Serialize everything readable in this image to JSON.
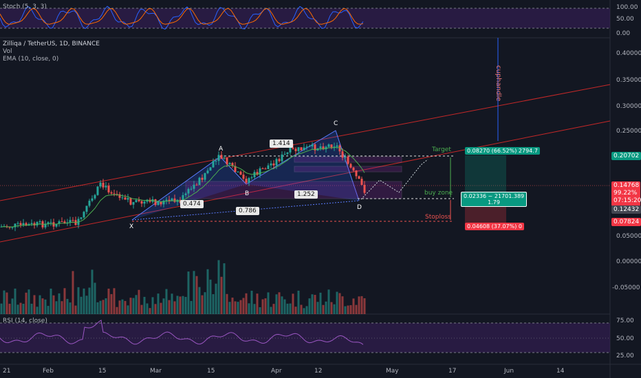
{
  "stoch": {
    "label": "Stoch (5, 3, 3)",
    "levels": [
      "100.00",
      "50.00",
      "0.00"
    ]
  },
  "legend": {
    "symbol": "Zilliqa / TetherUS, 1D, BINANCE",
    "vol": "Vol",
    "ema": "EMA (10, close, 0)"
  },
  "rsi": {
    "label": "RSI (14, close)",
    "levels": [
      "75.00",
      "50.00",
      "25.00"
    ]
  },
  "price_axis": [
    "0.40000",
    "0.35000",
    "0.30000",
    "0.25000",
    "0.05000",
    "0.00000",
    "-0.05000"
  ],
  "price_tags": {
    "target": "0.20702",
    "current_price": "0.14768",
    "current_pct": "99.22%",
    "countdown": "07:15:20",
    "entry": "0.12432",
    "stop": "0.07824"
  },
  "time_axis": [
    "21",
    "Feb",
    "15",
    "Mar",
    "15",
    "Apr",
    "12",
    "May",
    "17",
    "Jun",
    "14"
  ],
  "pattern": {
    "points": [
      "X",
      "A",
      "B",
      "C",
      "D"
    ],
    "ratios": [
      "1.414",
      "0.474",
      "1.252",
      "0.786"
    ]
  },
  "annotations": {
    "cuphandle": "cuphandle",
    "target": "Target",
    "buy_zone": "buy zone",
    "stoploss": "Stoploss"
  },
  "position": {
    "profit_box": "0.08270 (66.52%) 2794.7",
    "entry_box_line1": "0.02336 ~ 21701.389",
    "entry_box_line2": "1.79",
    "loss_box": "0.04608 (37.07%) 0"
  },
  "colors": {
    "bg": "#131722",
    "up": "#26a69a",
    "down": "#ef5350",
    "ema": "#4caf50",
    "rsi": "#9c57c4",
    "target_tag": "#089981",
    "stop_tag": "#f23645",
    "channel": "#c62828",
    "cup": "#2962ff"
  }
}
